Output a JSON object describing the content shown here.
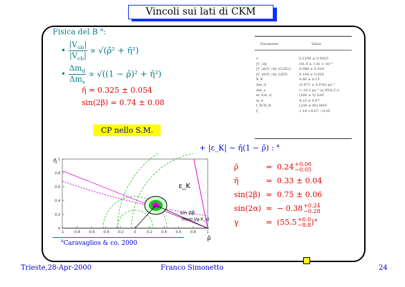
{
  "header": {
    "title": "Vincoli sui lati di CKM"
  },
  "intro": {
    "text": "Fisica del B",
    "note_mark": "a",
    "colon": ":"
  },
  "bullets": [
    {
      "dot": "•",
      "num": {
        "base": "|V",
        "sub": "ub",
        "end": "|"
      },
      "den": {
        "base": "|V",
        "sub": "cb",
        "end": "|"
      },
      "expr": "∝ √(ρ̄² + η̄²)"
    },
    {
      "dot": "•",
      "num": {
        "base": "Δm",
        "sub": "d"
      },
      "den": {
        "base": "Δm",
        "sub": "s"
      },
      "expr": "∝ √((1 − ρ̄)² + η̄²)"
    }
  ],
  "constraints": [
    "η̄ = 0.325 ± 0.054",
    "sin(2β) = 0.74 ± 0.08"
  ],
  "cp_box": "CP nello S.M.",
  "epsk": {
    "text": "+ |ε_K| ∼ η̄(1 − ρ̄) :",
    "note_mark": "a"
  },
  "table": {
    "header": [
      "Parameter",
      "Value"
    ],
    "rows": [
      [
        "λ",
        "0.2196 ± 0.0023"
      ],
      [
        "|V_cb|",
        "(41.0 ± 1.6) × 10⁻³"
      ],
      [
        "|V_ub/V_cb| (CLEO)",
        "0.080 ± 0.020"
      ],
      [
        "|V_ub/V_cb| (LEP)",
        "0.104 ± 0.020"
      ],
      [
        "B_K",
        "0.86 ± 0.15"
      ],
      [
        "Δm_d",
        "(0.471 ± 0.016) ps⁻¹"
      ],
      [
        "Δm_s",
        "> 14.3 ps⁻¹ at 95% C.L."
      ],
      [
        "m_t(m_t)",
        "(166 ± 5) GeV"
      ],
      [
        "m_b",
        "4.23 ± 0.07"
      ],
      [
        "f_B√B_B",
        "(230 ± 40) MeV"
      ],
      [
        "ξ",
        "1.14 +0.07 −0.05"
      ]
    ]
  },
  "plot": {
    "x_label": "ρ̄",
    "y_label": "η̄",
    "xticks": [
      "-1",
      "-0.8",
      "-0.6",
      "-0.4",
      "-0.2",
      "0",
      "0.2",
      "0.4",
      "0.6",
      "0.8",
      "1"
    ],
    "yticks": [
      "0",
      "0.2",
      "0.4",
      "0.6",
      "0.8",
      "1"
    ],
    "annotations": [
      "ε_K",
      "sin 2β",
      "(from J/ψ K_s)"
    ]
  },
  "results": [
    {
      "lhs": "ρ̄",
      "eq": "=",
      "value": "0.24",
      "sup": "+0.06",
      "sub": "−0.05"
    },
    {
      "lhs": "η̄",
      "eq": "=",
      "value": "0.33 ± 0.04"
    },
    {
      "lhs": "sin(2β)",
      "eq": "=",
      "value": "0.75 ± 0.06"
    },
    {
      "lhs": "sin(2α)",
      "eq": "=",
      "value": "− 0.38",
      "sup": "+0.24",
      "sub": "−0.28"
    },
    {
      "lhs": "γ",
      "eq": "=",
      "value": "(55.5",
      "sup": "+6.0",
      "sub": "−8.8",
      "end": ")°"
    }
  ],
  "footnote": {
    "mark": "a",
    "text": "Caravaglios & co. 2000"
  },
  "footer": {
    "left": "Trieste,28-Apr-2000",
    "center": "Franco Simonetto",
    "right": "24"
  }
}
